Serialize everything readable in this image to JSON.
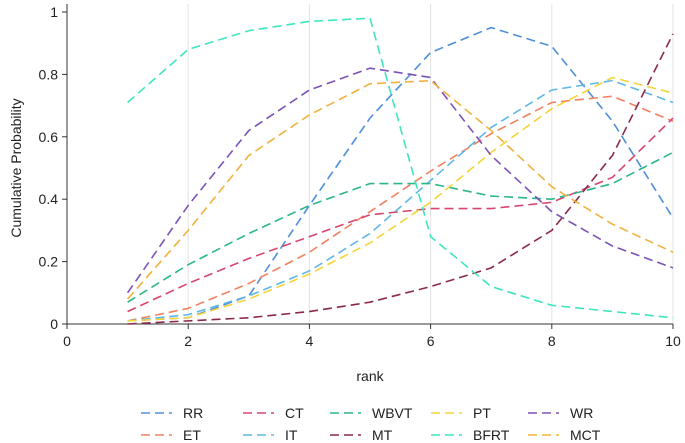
{
  "chart_data": {
    "type": "line",
    "title": "",
    "xlabel": "rank",
    "ylabel": "Cumulative Probability",
    "xlim": [
      0,
      10
    ],
    "ylim": [
      0,
      1
    ],
    "x_ticks": [
      0,
      2,
      4,
      6,
      8,
      10
    ],
    "x_tick_labels": [
      "0",
      "2",
      "4",
      "6",
      "8",
      "10"
    ],
    "y_ticks": [
      0,
      0.2,
      0.4,
      0.6,
      0.8,
      1
    ],
    "y_tick_labels": [
      "0",
      "0.2",
      "0.4",
      "0.6",
      "0.8",
      "1"
    ],
    "grid": "vertical",
    "legend_position": "bottom",
    "x": [
      1,
      2,
      3,
      4,
      5,
      6,
      7,
      8,
      9,
      10
    ],
    "series": [
      {
        "name": "RR",
        "color": "#4e8fd9",
        "values": [
          0.01,
          0.02,
          0.09,
          0.38,
          0.66,
          0.87,
          0.95,
          0.89,
          0.65,
          0.34
        ]
      },
      {
        "name": "ET",
        "color": "#f28060",
        "values": [
          0.01,
          0.05,
          0.13,
          0.23,
          0.36,
          0.49,
          0.61,
          0.71,
          0.73,
          0.65
        ]
      },
      {
        "name": "CT",
        "color": "#d6466e",
        "values": [
          0.04,
          0.13,
          0.21,
          0.28,
          0.35,
          0.37,
          0.37,
          0.39,
          0.47,
          0.66
        ]
      },
      {
        "name": "IT",
        "color": "#5fb7e6",
        "values": [
          0.01,
          0.03,
          0.09,
          0.17,
          0.29,
          0.46,
          0.63,
          0.75,
          0.78,
          0.71
        ]
      },
      {
        "name": "WBVT",
        "color": "#2bb58a",
        "values": [
          0.07,
          0.19,
          0.29,
          0.38,
          0.45,
          0.45,
          0.41,
          0.4,
          0.45,
          0.55
        ]
      },
      {
        "name": "MT",
        "color": "#8b2a45",
        "values": [
          0.0,
          0.01,
          0.02,
          0.04,
          0.07,
          0.12,
          0.18,
          0.3,
          0.54,
          0.93
        ]
      },
      {
        "name": "PT",
        "color": "#f5d43a",
        "values": [
          0.01,
          0.02,
          0.08,
          0.16,
          0.26,
          0.39,
          0.55,
          0.69,
          0.79,
          0.74
        ]
      },
      {
        "name": "BFRT",
        "color": "#3ee6bf",
        "values": [
          0.71,
          0.88,
          0.94,
          0.97,
          0.98,
          0.28,
          0.12,
          0.06,
          0.04,
          0.02
        ]
      },
      {
        "name": "WR",
        "color": "#7b52b6",
        "values": [
          0.1,
          0.38,
          0.62,
          0.75,
          0.82,
          0.79,
          0.54,
          0.36,
          0.25,
          0.18
        ]
      },
      {
        "name": "MCT",
        "color": "#f2b13d",
        "values": [
          0.08,
          0.3,
          0.54,
          0.67,
          0.77,
          0.78,
          0.62,
          0.44,
          0.32,
          0.23
        ]
      }
    ]
  }
}
